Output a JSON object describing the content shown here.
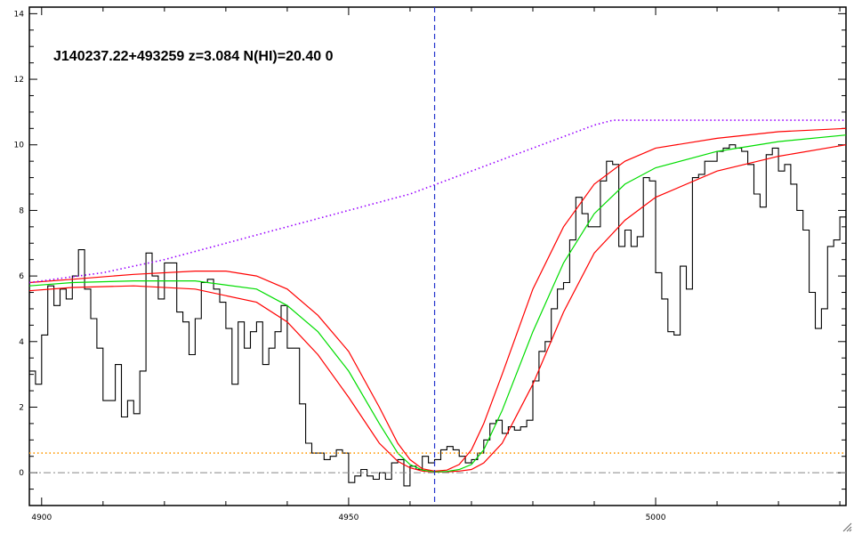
{
  "chart_data": {
    "type": "line",
    "title": "J140237.22+493259 z=3.084 N(HI)=20.40 0",
    "xlabel": "",
    "ylabel": "",
    "xlim": [
      4898,
      5031
    ],
    "ylim": [
      -1.0,
      14.2
    ],
    "x_ticks": [
      4900,
      4950,
      5000
    ],
    "y_ticks": [
      0,
      2,
      4,
      6,
      8,
      10,
      12,
      14
    ],
    "grid": false,
    "legend": "none",
    "vline_x": 4964,
    "zero_level": 0,
    "series": [
      {
        "style": "histogram",
        "color": "#000000",
        "x": [
          4898.5,
          4899.5,
          4900.5,
          4901.5,
          4902.5,
          4903.5,
          4904.5,
          4905.5,
          4906.5,
          4907.5,
          4908.5,
          4909.5,
          4910.5,
          4911.5,
          4912.5,
          4913.5,
          4914.5,
          4915.5,
          4916.5,
          4917.5,
          4918.5,
          4919.5,
          4920.5,
          4921.5,
          4922.5,
          4923.5,
          4924.5,
          4925.5,
          4926.5,
          4927.5,
          4928.5,
          4929.5,
          4930.5,
          4931.5,
          4932.5,
          4933.5,
          4934.5,
          4935.5,
          4936.5,
          4937.5,
          4938.5,
          4939.5,
          4940.5,
          4941.5,
          4942.5,
          4943.5,
          4944.5,
          4945.5,
          4946.5,
          4947.5,
          4948.5,
          4949.5,
          4950.5,
          4951.5,
          4952.5,
          4953.5,
          4954.5,
          4955.5,
          4956.5,
          4957.5,
          4958.5,
          4959.5,
          4960.5,
          4961.5,
          4962.5,
          4963.5,
          4964.5,
          4965.5,
          4966.5,
          4967.5,
          4968.5,
          4969.5,
          4970.5,
          4971.5,
          4972.5,
          4973.5,
          4974.5,
          4975.5,
          4976.5,
          4977.5,
          4978.5,
          4979.5,
          4980.5,
          4981.5,
          4982.5,
          4983.5,
          4984.5,
          4985.5,
          4986.5,
          4987.5,
          4988.5,
          4989.5,
          4990.5,
          4991.5,
          4992.5,
          4993.5,
          4994.5,
          4995.5,
          4996.5,
          4997.5,
          4998.5,
          4999.5,
          5000.5,
          5001.5,
          5002.5,
          5003.5,
          5004.5,
          5005.5,
          5006.5,
          5007.5,
          5008.5,
          5009.5,
          5010.5,
          5011.5,
          5012.5,
          5013.5,
          5014.5,
          5015.5,
          5016.5,
          5017.5,
          5018.5,
          5019.5,
          5020.5,
          5021.5,
          5022.5,
          5023.5,
          5024.5,
          5025.5,
          5026.5,
          5027.5,
          5028.5,
          5029.5,
          5030.5
        ],
        "y": [
          3.1,
          2.7,
          4.2,
          5.7,
          5.1,
          5.6,
          5.3,
          6.0,
          6.8,
          5.6,
          4.7,
          3.8,
          2.2,
          2.2,
          3.3,
          1.7,
          2.2,
          1.8,
          3.1,
          6.7,
          6.0,
          5.3,
          6.4,
          6.4,
          4.9,
          4.6,
          3.6,
          4.7,
          5.8,
          5.9,
          5.6,
          5.2,
          4.4,
          2.7,
          4.6,
          3.8,
          4.3,
          4.6,
          3.3,
          3.8,
          4.3,
          5.1,
          3.8,
          3.8,
          2.1,
          0.9,
          0.6,
          0.6,
          0.4,
          0.5,
          0.7,
          0.6,
          -0.3,
          -0.1,
          0.1,
          -0.1,
          -0.2,
          0.0,
          -0.2,
          0.3,
          0.4,
          -0.4,
          0.2,
          0.1,
          0.5,
          0.3,
          0.4,
          0.7,
          0.8,
          0.7,
          0.5,
          0.3,
          0.4,
          0.6,
          1.0,
          1.5,
          1.6,
          1.2,
          1.4,
          1.3,
          1.4,
          1.6,
          2.8,
          3.7,
          4.0,
          5.0,
          5.6,
          5.8,
          7.1,
          8.4,
          7.9,
          7.5,
          7.5,
          8.9,
          9.5,
          9.4,
          6.9,
          7.4,
          6.9,
          7.2,
          9.0,
          8.9,
          6.1,
          5.3,
          4.3,
          4.2,
          6.3,
          5.6,
          9.0,
          9.1,
          9.5,
          9.5,
          9.8,
          9.9,
          10.0,
          9.9,
          9.8,
          9.4,
          8.5,
          8.1,
          9.7,
          9.9,
          9.2,
          9.4,
          8.8,
          8.0,
          7.4,
          5.5,
          4.4,
          5.0,
          6.9,
          7.1,
          7.8
        ]
      },
      {
        "style": "line",
        "color": "#ff0000",
        "x": [
          4898,
          4905,
          4915,
          4925,
          4935,
          4940,
          4945,
          4950,
          4955,
          4958,
          4960,
          4962,
          4964,
          4966,
          4968,
          4970,
          4972,
          4975,
          4980,
          4985,
          4990,
          4995,
          5000,
          5010,
          5020,
          5031
        ],
        "y": [
          5.55,
          5.65,
          5.7,
          5.6,
          5.2,
          4.6,
          3.6,
          2.3,
          0.9,
          0.35,
          0.15,
          0.05,
          0.02,
          0.03,
          0.05,
          0.1,
          0.3,
          0.9,
          2.7,
          4.9,
          6.7,
          7.7,
          8.4,
          9.2,
          9.65,
          10.0
        ]
      },
      {
        "style": "line",
        "color": "#00dd00",
        "x": [
          4898,
          4905,
          4915,
          4925,
          4935,
          4940,
          4945,
          4950,
          4955,
          4958,
          4960,
          4962,
          4964,
          4966,
          4968,
          4970,
          4972,
          4975,
          4980,
          4985,
          4990,
          4995,
          5000,
          5010,
          5020,
          5031
        ],
        "y": [
          5.7,
          5.8,
          5.85,
          5.85,
          5.6,
          5.1,
          4.3,
          3.1,
          1.5,
          0.6,
          0.25,
          0.08,
          0.03,
          0.04,
          0.1,
          0.25,
          0.7,
          1.9,
          4.3,
          6.4,
          7.9,
          8.8,
          9.3,
          9.8,
          10.1,
          10.3
        ]
      },
      {
        "style": "line",
        "color": "#ff0000",
        "x": [
          4898,
          4905,
          4915,
          4925,
          4930,
          4935,
          4940,
          4945,
          4950,
          4955,
          4958,
          4960,
          4962,
          4964,
          4966,
          4968,
          4970,
          4972,
          4975,
          4980,
          4985,
          4990,
          4995,
          5000,
          5010,
          5020,
          5031
        ],
        "y": [
          5.8,
          5.9,
          6.05,
          6.15,
          6.15,
          6.0,
          5.6,
          4.8,
          3.7,
          2.0,
          0.9,
          0.4,
          0.12,
          0.05,
          0.08,
          0.25,
          0.7,
          1.5,
          3.0,
          5.6,
          7.5,
          8.8,
          9.5,
          9.9,
          10.2,
          10.4,
          10.5
        ]
      },
      {
        "style": "dotted",
        "color": "#9900ff",
        "x": [
          4898,
          4910,
          4920,
          4930,
          4940,
          4950,
          4960,
          4970,
          4980,
          4990,
          4993,
          5010,
          5031
        ],
        "y": [
          5.8,
          6.1,
          6.5,
          7.0,
          7.5,
          8.0,
          8.5,
          9.2,
          9.9,
          10.6,
          10.75,
          10.75,
          10.75
        ]
      },
      {
        "style": "dotted",
        "color": "#ff9900",
        "x": [
          4898,
          5031
        ],
        "y": [
          0.6,
          0.6
        ]
      }
    ]
  }
}
